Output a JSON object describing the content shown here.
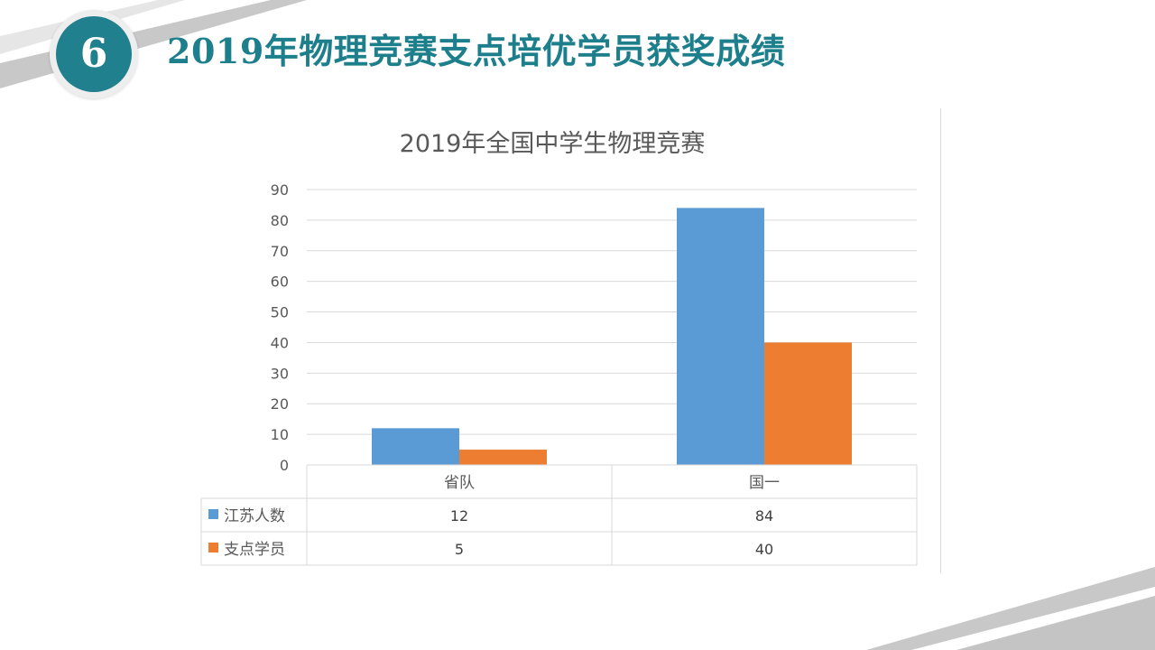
{
  "slide": {
    "badge_number": "6",
    "title": "2019年物理竞赛支点培优学员获奖成绩"
  },
  "colors": {
    "accent": "#21808d",
    "title": "#1d7f8c",
    "series1": "#5b9bd5",
    "series2": "#ed7d31"
  },
  "chart_data": {
    "type": "bar",
    "title": "2019年全国中学生物理竞赛",
    "categories": [
      "省队",
      "国一"
    ],
    "series": [
      {
        "name": "江苏人数",
        "values": [
          12,
          84
        ]
      },
      {
        "name": "支点学员",
        "values": [
          5,
          40
        ]
      }
    ],
    "ylim": [
      0,
      90
    ],
    "yticks": [
      0,
      10,
      20,
      30,
      40,
      50,
      60,
      70,
      80,
      90
    ],
    "grid": true,
    "legend": "data-table"
  }
}
